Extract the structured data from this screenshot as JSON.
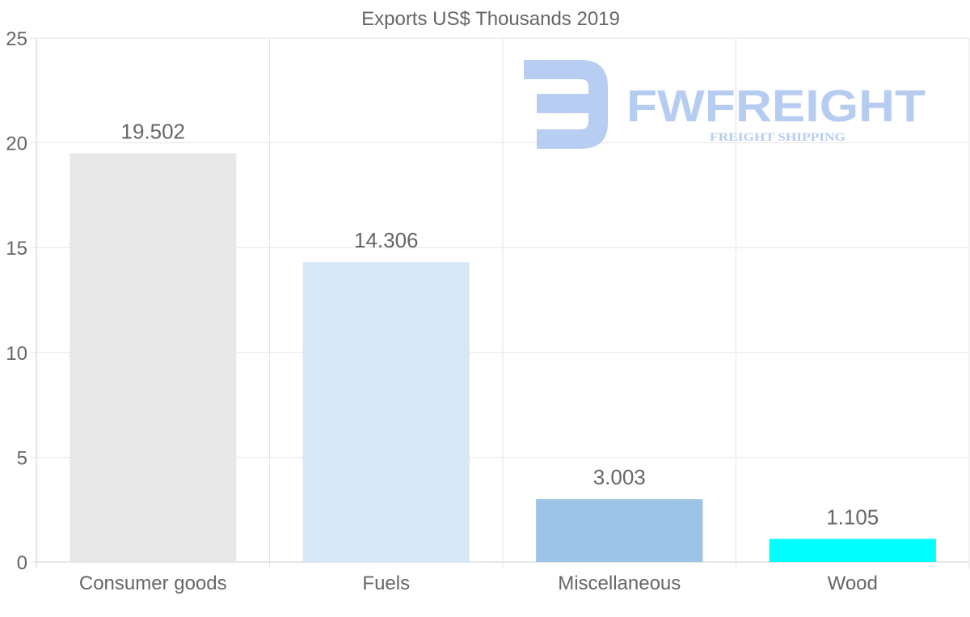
{
  "chart_data": {
    "type": "bar",
    "title": "Exports US$ Thousands 2019",
    "categories": [
      "Consumer goods",
      "Fuels",
      "Miscellaneous",
      "Wood"
    ],
    "values": [
      19.502,
      14.306,
      3.003,
      1.105
    ],
    "data_labels": [
      "19.502",
      "14.306",
      "3.003",
      "1.105"
    ],
    "colors": [
      "#e8e8e8",
      "#d6e7f8",
      "#9dc3e6",
      "#00ffff"
    ],
    "ylim": [
      0,
      25
    ],
    "yticks": [
      0,
      5,
      10,
      15,
      20,
      25
    ],
    "xlabel": "",
    "ylabel": "",
    "grid": true,
    "legend": "none"
  },
  "watermark": {
    "brand": "FWFREIGHT",
    "tagline": "FREIGHT SHIPPING",
    "color": "#aac4ef"
  }
}
